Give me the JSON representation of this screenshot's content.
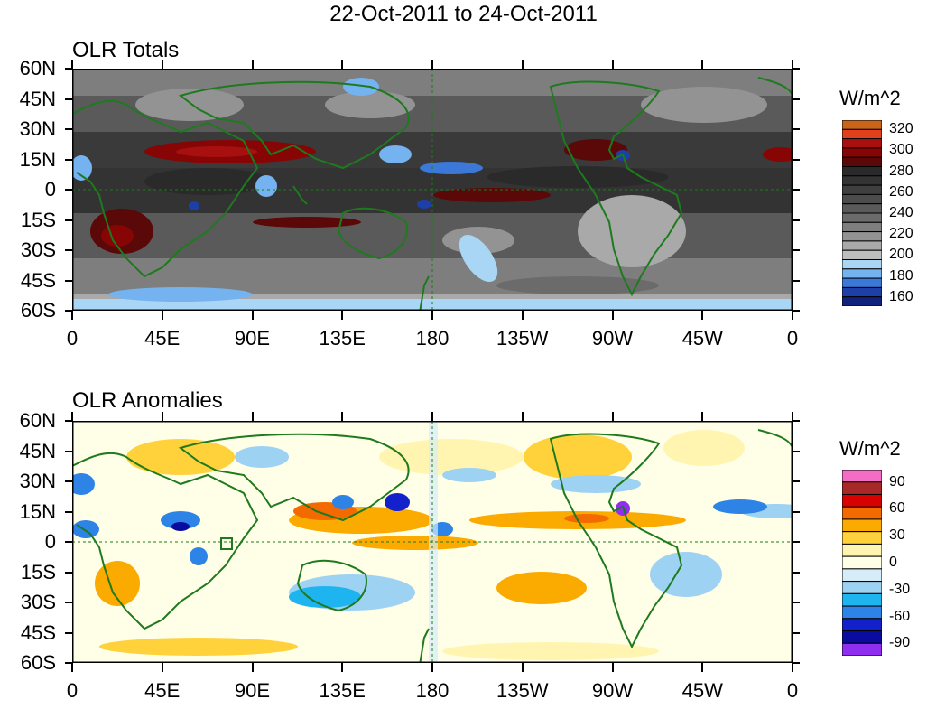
{
  "title": "22-Oct-2011 to 24-Oct-2011",
  "panels": [
    {
      "name": "totals",
      "title": "OLR Totals",
      "unit": "W/m^2",
      "colorbar": {
        "labels": [
          "320",
          "300",
          "280",
          "260",
          "240",
          "220",
          "200",
          "180",
          "160"
        ],
        "colors": [
          "#c8651b",
          "#e0401c",
          "#a80f0f",
          "#870505",
          "#5a0808",
          "#2a2a2a",
          "#333333",
          "#3f3f3f",
          "#4c4c4c",
          "#5a5a5a",
          "#6b6b6b",
          "#7e7e7e",
          "#939393",
          "#a9a9a9",
          "#bebebe",
          "#a9d6f5",
          "#74b3f0",
          "#3c78d8",
          "#1c3fa8",
          "#10237c"
        ]
      }
    },
    {
      "name": "anomalies",
      "title": "OLR Anomalies",
      "unit": "W/m^2",
      "colorbar": {
        "labels": [
          "90",
          "60",
          "30",
          "0",
          "-30",
          "-60",
          "-90"
        ],
        "colors": [
          "#f46dc4",
          "#a82828",
          "#d90000",
          "#f26a00",
          "#fbaa00",
          "#ffd23c",
          "#fff5b0",
          "#fffee6",
          "#d6ecf9",
          "#9ed2f2",
          "#1eb4f0",
          "#2d83e6",
          "#1321cd",
          "#0a0ca0",
          "#8f2df0"
        ]
      }
    }
  ],
  "axes": {
    "lat_labels": [
      "60N",
      "45N",
      "30N",
      "15N",
      "0",
      "15S",
      "30S",
      "45S",
      "60S"
    ],
    "lon_labels": [
      "0",
      "45E",
      "90E",
      "135E",
      "180",
      "135W",
      "90W",
      "45W",
      "0"
    ]
  }
}
